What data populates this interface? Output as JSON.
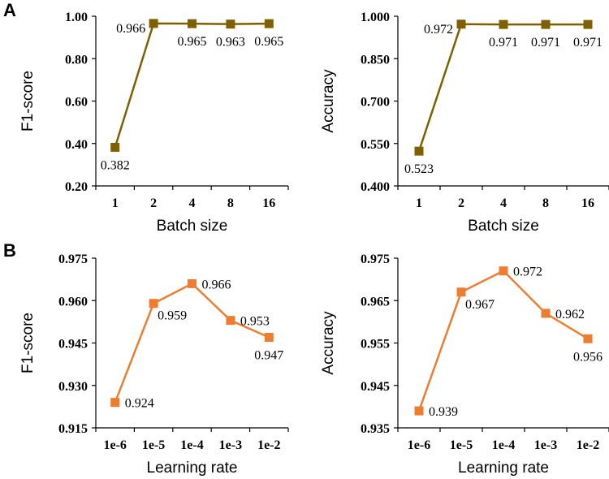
{
  "panels": {
    "a": "A",
    "b": "B"
  },
  "chart_data": [
    {
      "type": "line",
      "panel": "A",
      "xlabel": "Batch size",
      "ylabel": "F1-score",
      "categories": [
        "1",
        "2",
        "4",
        "8",
        "16"
      ],
      "values": [
        0.382,
        0.966,
        0.965,
        0.963,
        0.965
      ],
      "value_labels": [
        "0.382",
        "0.966",
        "0.965",
        "0.963",
        "0.965"
      ],
      "label_pos": [
        "below",
        "left",
        "below",
        "below",
        "below"
      ],
      "ylim": [
        0.2,
        1.0
      ],
      "yticks": [
        0.2,
        0.4,
        0.6,
        0.8,
        1.0
      ],
      "ytick_labels": [
        "0.20",
        "0.40",
        "0.60",
        "0.80",
        "1.00"
      ],
      "color": "#7f6000"
    },
    {
      "type": "line",
      "panel": "A",
      "xlabel": "Batch size",
      "ylabel": "Accuracy",
      "categories": [
        "1",
        "2",
        "4",
        "8",
        "16"
      ],
      "values": [
        0.523,
        0.972,
        0.971,
        0.971,
        0.971
      ],
      "value_labels": [
        "0.523",
        "0.972",
        "0.971",
        "0.971",
        "0.971"
      ],
      "label_pos": [
        "below",
        "left",
        "below",
        "below",
        "below"
      ],
      "ylim": [
        0.4,
        1.0
      ],
      "yticks": [
        0.4,
        0.55,
        0.7,
        0.85,
        1.0
      ],
      "ytick_labels": [
        "0.400",
        "0.550",
        "0.700",
        "0.850",
        "1.000"
      ],
      "color": "#7f6000"
    },
    {
      "type": "line",
      "panel": "B",
      "xlabel": "Learning rate",
      "ylabel": "F1-score",
      "categories": [
        "1e-6",
        "1e-5",
        "1e-4",
        "1e-3",
        "1e-2"
      ],
      "values": [
        0.924,
        0.959,
        0.966,
        0.953,
        0.947
      ],
      "value_labels": [
        "0.924",
        "0.959",
        "0.966",
        "0.953",
        "0.947"
      ],
      "label_pos": [
        "right",
        "below-right",
        "right",
        "right",
        "below"
      ],
      "ylim": [
        0.915,
        0.975
      ],
      "yticks": [
        0.915,
        0.93,
        0.945,
        0.96,
        0.975
      ],
      "ytick_labels": [
        "0.915",
        "0.930",
        "0.945",
        "0.960",
        "0.975"
      ],
      "color": "#ed7d31"
    },
    {
      "type": "line",
      "panel": "B",
      "xlabel": "Learning rate",
      "ylabel": "Accuracy",
      "categories": [
        "1e-6",
        "1e-5",
        "1e-4",
        "1e-3",
        "1e-2"
      ],
      "values": [
        0.939,
        0.967,
        0.972,
        0.962,
        0.956
      ],
      "value_labels": [
        "0.939",
        "0.967",
        "0.972",
        "0.962",
        "0.956"
      ],
      "label_pos": [
        "right",
        "below-right",
        "right",
        "right",
        "below"
      ],
      "ylim": [
        0.935,
        0.975
      ],
      "yticks": [
        0.935,
        0.945,
        0.955,
        0.965,
        0.975
      ],
      "ytick_labels": [
        "0.935",
        "0.945",
        "0.955",
        "0.965",
        "0.975"
      ],
      "color": "#ed7d31"
    }
  ]
}
